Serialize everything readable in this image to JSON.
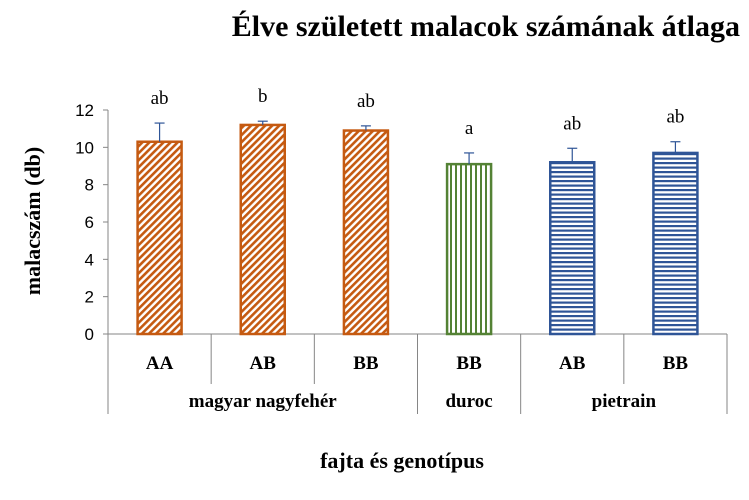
{
  "chart_data": {
    "type": "bar",
    "title": "Élve született malacok számának átlaga",
    "xlabel": "fajta és genotípus",
    "ylabel": "malacszám (db)",
    "ylim": [
      0,
      12
    ],
    "yticks": [
      0,
      2,
      4,
      6,
      8,
      10,
      12
    ],
    "grid": false,
    "legend": "none",
    "categories": [
      "AA",
      "AB",
      "BB",
      "BB",
      "AB",
      "BB"
    ],
    "groups": [
      {
        "label": "magyar nagyfehér",
        "start": 0,
        "count": 3,
        "pattern": "diagonal",
        "color": "#C55A11"
      },
      {
        "label": "duroc",
        "start": 3,
        "count": 1,
        "pattern": "vertical",
        "color": "#548235"
      },
      {
        "label": "pietrain",
        "start": 4,
        "count": 2,
        "pattern": "horizontal",
        "color": "#2F5597"
      }
    ],
    "values": [
      10.3,
      11.2,
      10.9,
      9.1,
      9.2,
      9.7
    ],
    "errors": [
      1.0,
      0.2,
      0.25,
      0.6,
      0.75,
      0.6
    ],
    "significance": [
      "ab",
      "b",
      "ab",
      "a",
      "ab",
      "ab"
    ]
  }
}
